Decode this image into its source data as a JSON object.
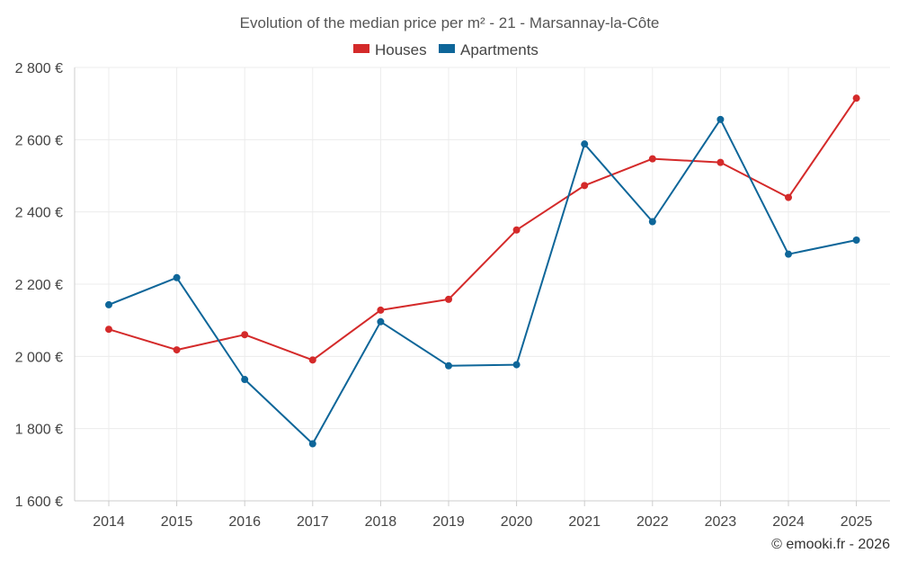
{
  "chart_data": {
    "type": "line",
    "title": "Evolution of the median price per m² - 21 - Marsannay-la-Côte",
    "categories": [
      "2014",
      "2015",
      "2016",
      "2017",
      "2018",
      "2019",
      "2020",
      "2021",
      "2022",
      "2023",
      "2024",
      "2025"
    ],
    "series": [
      {
        "name": "Houses",
        "color": "#d42a2a",
        "values": [
          2075,
          2018,
          2060,
          1990,
          2128,
          2158,
          2350,
          2473,
          2547,
          2537,
          2440,
          2715
        ]
      },
      {
        "name": "Apartments",
        "color": "#0e6699",
        "values": [
          2143,
          2218,
          1936,
          1758,
          2096,
          1974,
          1977,
          2588,
          2373,
          2656,
          2283,
          2322
        ]
      }
    ],
    "ylim": [
      1600,
      2800
    ],
    "yticks": [
      1600,
      1800,
      2000,
      2200,
      2400,
      2600,
      2800
    ],
    "ytick_labels": [
      "1 600 €",
      "1 800 €",
      "2 000 €",
      "2 200 €",
      "2 400 €",
      "2 600 €",
      "2 800 €"
    ],
    "xlabel": "",
    "ylabel": "",
    "grid": true,
    "legend_position": "top-center"
  },
  "footer": {
    "credit": "© emooki.fr - 2026"
  }
}
